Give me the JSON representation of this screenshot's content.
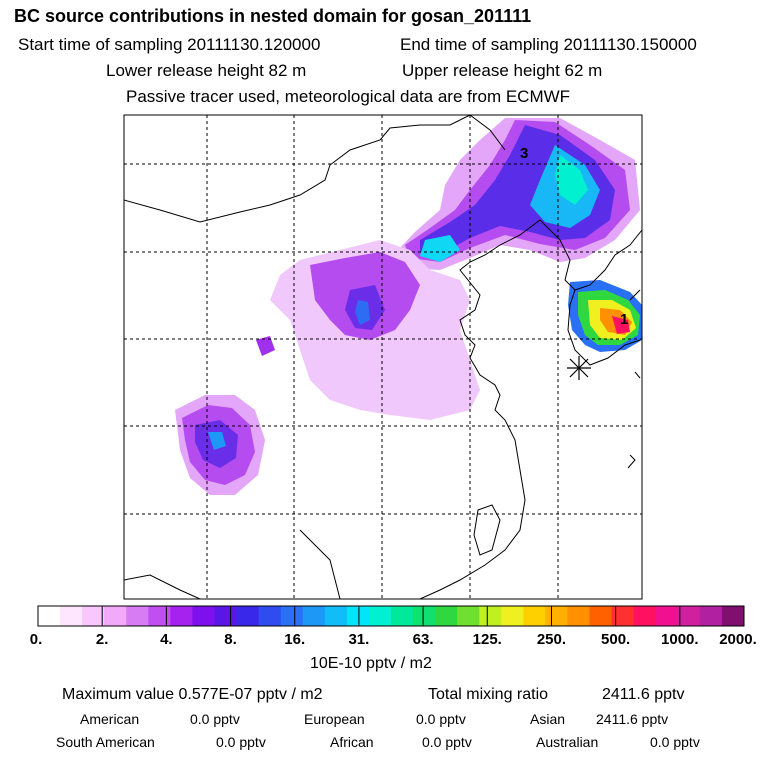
{
  "header": {
    "title": "BC  source contributions in nested domain for gosan_201111",
    "start_label": "Start time of sampling 20111130.120000",
    "end_label": "End time of sampling 20111130.150000",
    "lower_label": "Lower release height   82 m",
    "upper_label": "Upper release height   62 m",
    "note": "Passive tracer used, meteorological data are from ECMWF"
  },
  "chart_data": {
    "type": "heatmap",
    "title": "BC  source contributions in nested domain for gosan_201111",
    "colorbar": {
      "ticks": [
        "0.",
        "2.",
        "4.",
        "8.",
        "16.",
        "31.",
        "63.",
        "125.",
        "250.",
        "500.",
        "1000.",
        "2000."
      ],
      "unit": "10E-10 pptv / m2",
      "colors": [
        "#ffffff",
        "#fde6fe",
        "#f8c8fc",
        "#f3a9fa",
        "#d77cf2",
        "#c04ef0",
        "#a622ee",
        "#7d10ec",
        "#5a16e6",
        "#3a28ea",
        "#2f4cf0",
        "#2a70f4",
        "#1d98f6",
        "#10bdf8",
        "#00e6f8",
        "#00f0d0",
        "#00e89a",
        "#10e070",
        "#30d840",
        "#70e030",
        "#c0f020",
        "#f0f020",
        "#ffd000",
        "#ffb000",
        "#ff9000",
        "#ff6000",
        "#ff3030",
        "#ff1060",
        "#f01090",
        "#d020a0",
        "#b020a0",
        "#801070"
      ]
    },
    "markers": [
      {
        "label": "1"
      },
      {
        "label": "3"
      }
    ],
    "receptor": "gosan"
  },
  "stats": {
    "max_label": "Maximum value  0.577E-07 pptv / m2",
    "total_label": "Total mixing ratio",
    "total_value": "2411.6 pptv",
    "american_label": "American",
    "american_value": "0.0 pptv",
    "european_label": "European",
    "european_value": "0.0 pptv",
    "asian_label": "Asian",
    "asian_value": "2411.6 pptv",
    "samerican_label": "South American",
    "samerican_value": "0.0 pptv",
    "african_label": "African",
    "african_value": "0.0 pptv",
    "australian_label": "Australian",
    "australian_value": "0.0 pptv"
  }
}
